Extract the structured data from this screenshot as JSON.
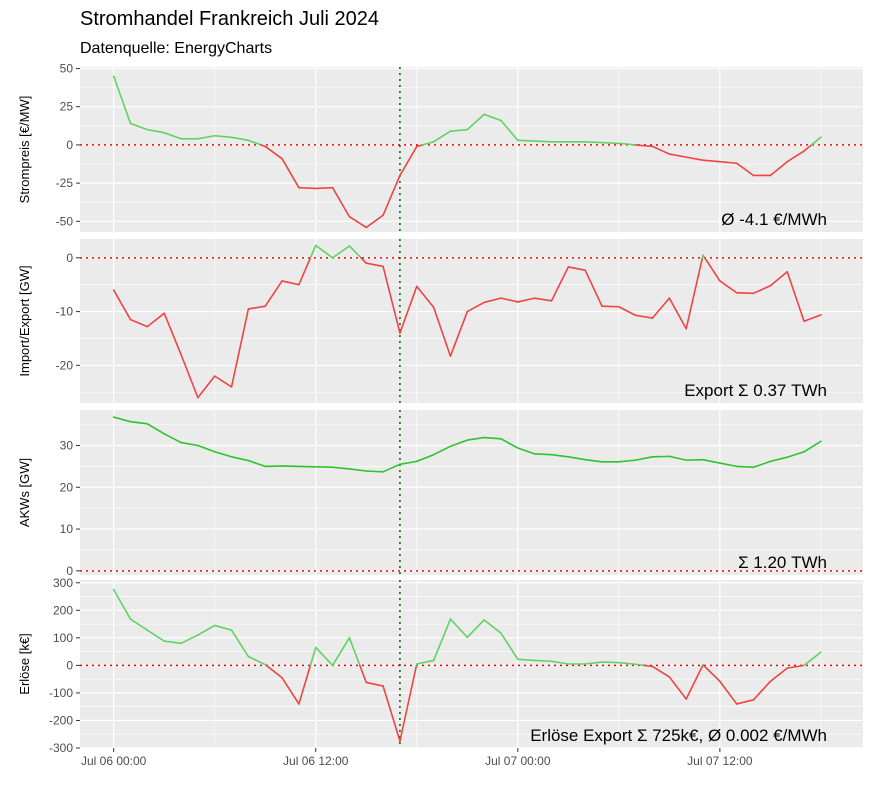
{
  "figure": {
    "title": "Stromhandel Frankreich Juli 2024",
    "subtitle": "Datenquelle: EnergyCharts"
  },
  "colors": {
    "positive": "#5fd35f",
    "negative": "#ef4444",
    "nuclear": "#2ec42e",
    "panel_bg": "#ebebeb",
    "grid": "#ffffff",
    "zero_line": "#ff0000",
    "marker_line": "#006400"
  },
  "x_axis": {
    "ticks": [
      0,
      12,
      24,
      36
    ],
    "tick_labels": [
      "Jul 06 00:00",
      "Jul 06 12:00",
      "Jul 07 00:00",
      "Jul 07 12:00"
    ],
    "range_hours": [
      -2,
      44.5
    ],
    "marker_hour": 17
  },
  "chart_data": [
    {
      "type": "line",
      "ylabel": "Strompreis [€/MW]",
      "ylim": [
        -57,
        51
      ],
      "yticks": [
        50,
        25,
        0,
        -25,
        -50
      ],
      "annotation": "Ø -4.1 €/MWh",
      "color_by_sign": true,
      "x_hours": [
        0,
        1,
        2,
        3,
        4,
        5,
        6,
        7,
        8,
        9,
        10,
        11,
        12,
        13,
        14,
        15,
        16,
        17,
        18,
        19,
        20,
        21,
        22,
        23,
        24,
        25,
        26,
        27,
        28,
        29,
        30,
        31,
        32,
        33,
        34,
        35,
        36,
        37,
        38,
        39,
        40,
        41,
        42
      ],
      "values": [
        45,
        14,
        10,
        8,
        4,
        4,
        6,
        5,
        3,
        -1,
        -9,
        -28,
        -28.5,
        -28,
        -47,
        -54,
        -46,
        -20,
        -1,
        2,
        9,
        10,
        20,
        16,
        3,
        2.5,
        2,
        2,
        2,
        1.5,
        1,
        0,
        -1,
        -6,
        -8,
        -10,
        -11,
        -12,
        -20,
        -20,
        -11,
        -4,
        5
      ]
    },
    {
      "type": "line",
      "ylabel": "Import/Export [GW]",
      "ylim": [
        -27,
        3.5
      ],
      "yticks": [
        0,
        -10,
        -20
      ],
      "annotation": "Export Σ 0.37 TWh",
      "color_by_sign": true,
      "x_hours": [
        0,
        1,
        2,
        3,
        4,
        5,
        6,
        7,
        8,
        9,
        10,
        11,
        12,
        13,
        14,
        15,
        16,
        17,
        18,
        19,
        20,
        21,
        22,
        23,
        24,
        25,
        26,
        27,
        28,
        29,
        30,
        31,
        32,
        33,
        34,
        35,
        36,
        37,
        38,
        39,
        40,
        41,
        42
      ],
      "values": [
        -6,
        -11.5,
        -12.8,
        -10.3,
        -18,
        -26,
        -22,
        -24,
        -9.5,
        -9,
        -4.3,
        -5,
        2.3,
        0,
        2.2,
        -1,
        -1.6,
        -14,
        -5.3,
        -9.2,
        -18.3,
        -10,
        -8.3,
        -7.5,
        -8.2,
        -7.5,
        -8,
        -1.7,
        -2.3,
        -9,
        -9.1,
        -10.7,
        -11.2,
        -7.5,
        -13.2,
        0.5,
        -4.3,
        -6.5,
        -6.6,
        -5.2,
        -2.6,
        -11.8,
        -10.6
      ]
    },
    {
      "type": "line",
      "ylabel": "AKWs [GW]",
      "ylim": [
        -1,
        38.5
      ],
      "yticks": [
        30,
        20,
        10,
        0
      ],
      "annotation": "Σ 1.20 TWh",
      "color_by_sign": false,
      "x_hours": [
        0,
        1,
        2,
        3,
        4,
        5,
        6,
        7,
        8,
        9,
        10,
        11,
        12,
        13,
        14,
        15,
        16,
        17,
        18,
        19,
        20,
        21,
        22,
        23,
        24,
        25,
        26,
        27,
        28,
        29,
        30,
        31,
        32,
        33,
        34,
        35,
        36,
        37,
        38,
        39,
        40,
        41,
        42
      ],
      "values": [
        36.8,
        35.7,
        35.2,
        32.8,
        30.7,
        30,
        28.5,
        27.3,
        26.4,
        25,
        25.1,
        25,
        24.9,
        24.8,
        24.4,
        23.9,
        23.7,
        25.5,
        26.2,
        27.8,
        29.8,
        31.3,
        31.9,
        31.6,
        29.4,
        28,
        27.8,
        27.3,
        26.6,
        26.1,
        26.1,
        26.5,
        27.3,
        27.4,
        26.5,
        26.6,
        25.8,
        25,
        24.8,
        26.2,
        27.2,
        28.5,
        31
      ]
    },
    {
      "type": "line",
      "ylabel": "Erlöse [k€]",
      "ylim": [
        -300,
        310
      ],
      "yticks": [
        300,
        200,
        100,
        0,
        -100,
        -200,
        -300
      ],
      "annotation": "Erlöse Export Σ 725k€, Ø 0.002 €/MWh",
      "color_by_sign": true,
      "x_hours": [
        0,
        1,
        2,
        3,
        4,
        5,
        6,
        7,
        8,
        9,
        10,
        11,
        12,
        13,
        14,
        15,
        16,
        17,
        18,
        19,
        20,
        21,
        22,
        23,
        24,
        25,
        26,
        27,
        28,
        29,
        30,
        31,
        32,
        33,
        34,
        35,
        36,
        37,
        38,
        39,
        40,
        41,
        42
      ],
      "values": [
        275,
        168,
        128,
        88,
        80,
        110,
        145,
        128,
        32,
        3,
        -45,
        -140,
        65,
        0,
        100,
        -62,
        -75,
        -275,
        5,
        18,
        168,
        102,
        165,
        117,
        22,
        18,
        15,
        5,
        5,
        12,
        10,
        4,
        -4,
        -42,
        -122,
        2,
        -58,
        -140,
        -125,
        -58,
        -10,
        0,
        48
      ]
    }
  ]
}
